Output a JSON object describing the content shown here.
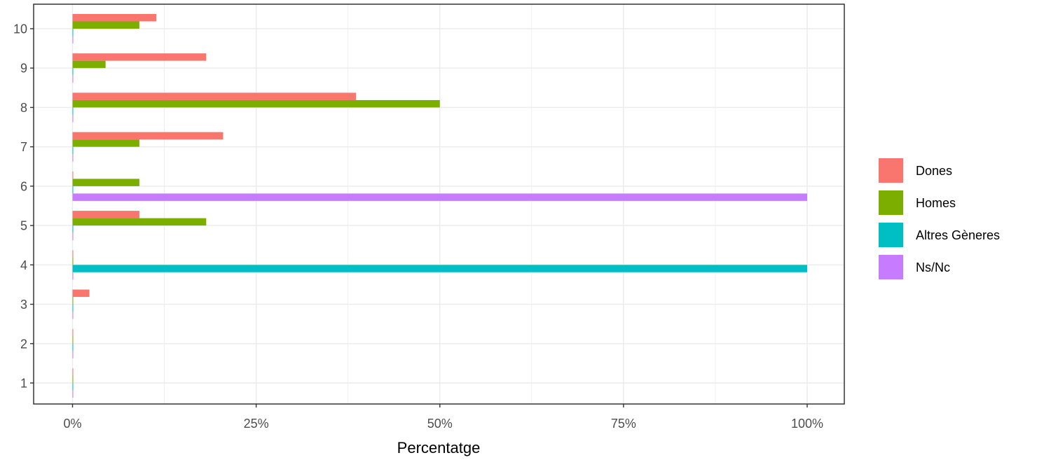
{
  "chart_data": {
    "type": "bar",
    "orientation": "horizontal",
    "categories": [
      "1",
      "2",
      "3",
      "4",
      "5",
      "6",
      "7",
      "8",
      "9",
      "10"
    ],
    "series": [
      {
        "name": "Dones",
        "color": "#F8766D",
        "values": [
          0,
          0,
          2.3,
          0,
          9.1,
          0,
          20.5,
          38.6,
          18.2,
          11.4
        ]
      },
      {
        "name": "Homes",
        "color": "#7CAE00",
        "values": [
          0,
          0,
          0,
          0,
          18.2,
          9.1,
          9.1,
          50.0,
          4.5,
          9.1
        ]
      },
      {
        "name": "Altres Gèneres",
        "color": "#00BFC4",
        "values": [
          0,
          0,
          0,
          100,
          0,
          0,
          0,
          0,
          0,
          0
        ]
      },
      {
        "name": "Ns/Nc",
        "color": "#C77CFF",
        "values": [
          0,
          0,
          0,
          0,
          0,
          100,
          0,
          0,
          0,
          0
        ]
      }
    ],
    "xlabel": "Percentatge",
    "ylabel": "",
    "xlim": [
      0,
      100
    ],
    "x_ticks": [
      "0%",
      "25%",
      "50%",
      "75%",
      "100%"
    ],
    "grid": true,
    "legend_position": "right"
  }
}
